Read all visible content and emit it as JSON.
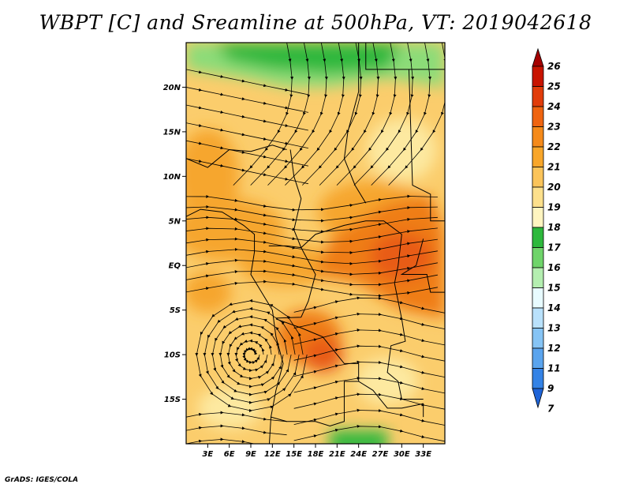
{
  "title": "WBPT [C] and Sreamline at 500hPa, VT: 2019042618",
  "credit": "GrADS: IGES/COLA",
  "map": {
    "lat_range": [
      -20,
      25
    ],
    "lon_range": [
      0,
      36
    ],
    "lat_ticks": [
      {
        "value": 20,
        "label": "20N"
      },
      {
        "value": 15,
        "label": "15N"
      },
      {
        "value": 10,
        "label": "10N"
      },
      {
        "value": 5,
        "label": "5N"
      },
      {
        "value": 0,
        "label": "EQ"
      },
      {
        "value": -5,
        "label": "5S"
      },
      {
        "value": -10,
        "label": "10S"
      },
      {
        "value": -15,
        "label": "15S"
      }
    ],
    "lon_ticks": [
      {
        "value": 3,
        "label": "3E"
      },
      {
        "value": 6,
        "label": "6E"
      },
      {
        "value": 9,
        "label": "9E"
      },
      {
        "value": 12,
        "label": "12E"
      },
      {
        "value": 15,
        "label": "15E"
      },
      {
        "value": 18,
        "label": "18E"
      },
      {
        "value": 21,
        "label": "21E"
      },
      {
        "value": 24,
        "label": "24E"
      },
      {
        "value": 27,
        "label": "27E"
      },
      {
        "value": 30,
        "label": "30E"
      },
      {
        "value": 33,
        "label": "33E"
      }
    ],
    "field_colors": {
      "green": "#2db83c",
      "light_green": "#8cdc78",
      "pale_yellow": "#fde9a0",
      "light_orange": "#fbcd6c",
      "orange": "#f6a62e",
      "dark_orange": "#ef7d18",
      "red_orange": "#e85b12"
    }
  },
  "colorbar": {
    "labels": [
      "26",
      "25",
      "24",
      "23",
      "22",
      "21",
      "20",
      "19",
      "18",
      "17",
      "16",
      "15",
      "14",
      "13",
      "12",
      "11",
      "9",
      "7"
    ],
    "colors": [
      "#a50000",
      "#c81400",
      "#e13c0a",
      "#ef6410",
      "#f58a1a",
      "#f8a62a",
      "#fbc45a",
      "#fde08c",
      "#fff5c0",
      "#2db83c",
      "#6fd46a",
      "#b4eeb0",
      "#e8fbff",
      "#b9e1fb",
      "#86c4f5",
      "#5aa4ee",
      "#3483e6",
      "#1e64d8"
    ]
  }
}
